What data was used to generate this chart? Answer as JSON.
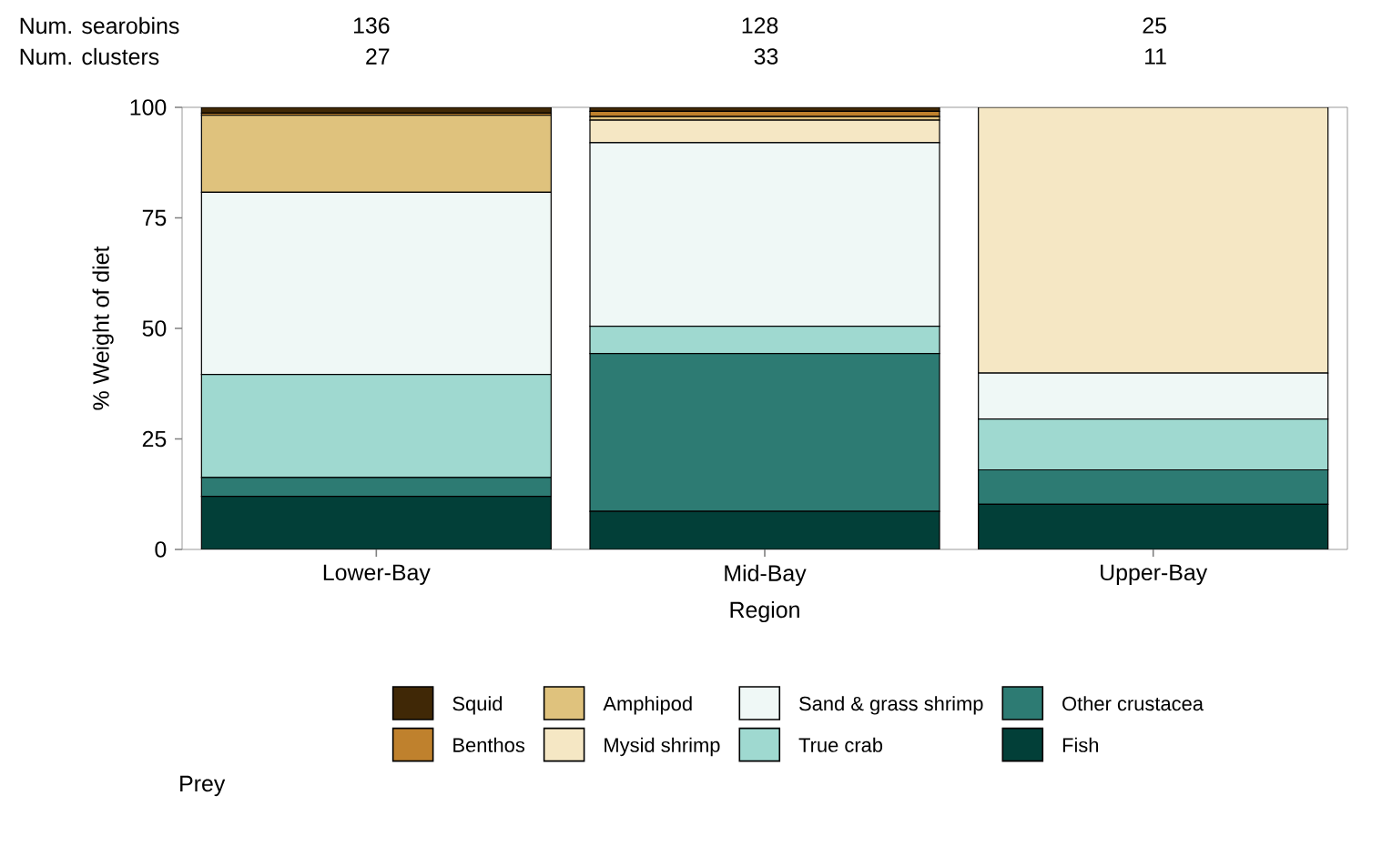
{
  "chart_data": {
    "type": "bar",
    "stacked": true,
    "xlabel": "Region",
    "ylabel": "% Weight of diet",
    "legend_title": "Prey",
    "legend": "bottom",
    "grid": false,
    "categories": [
      "Lower-Bay",
      "Mid-Bay",
      "Upper-Bay"
    ],
    "ylim": [
      0,
      100
    ],
    "yticks": [
      0,
      25,
      50,
      75,
      100
    ],
    "annotations": [
      "Num. searobins",
      "136",
      "128",
      "25",
      "Num. clusters",
      "27",
      "33",
      "11"
    ],
    "series": [
      {
        "name": "Fish",
        "color": "#023f38",
        "values": [
          12,
          8.6,
          10.2
        ]
      },
      {
        "name": "Other crustacea",
        "color": "#2d7b73",
        "values": [
          4.3,
          35.7,
          7.8
        ]
      },
      {
        "name": "True crab",
        "color": "#9fd9d0",
        "values": [
          23.3,
          6.2,
          11.5
        ]
      },
      {
        "name": "Sand & grass shrimp",
        "color": "#eff8f6",
        "values": [
          41.2,
          41.5,
          10.4
        ]
      },
      {
        "name": "Mysid shrimp",
        "color": "#f5e7c4",
        "values": [
          0,
          5.1,
          60.1
        ]
      },
      {
        "name": "Amphipod",
        "color": "#dfc27d",
        "values": [
          17.4,
          0.8,
          0
        ]
      },
      {
        "name": "Benthos",
        "color": "#bf812d",
        "values": [
          0.5,
          1.2,
          0
        ]
      },
      {
        "name": "Squid",
        "color": "#402806",
        "values": [
          1.3,
          0.9,
          0
        ]
      }
    ]
  }
}
